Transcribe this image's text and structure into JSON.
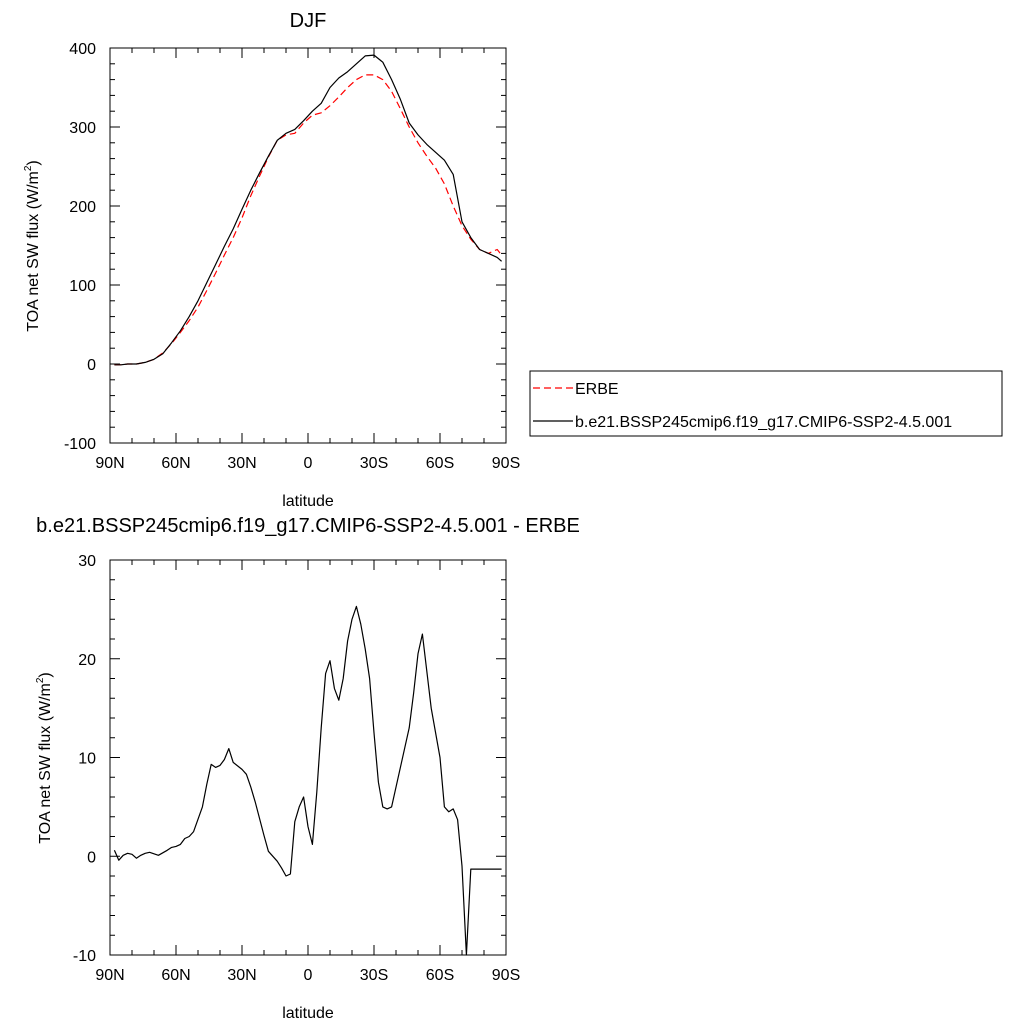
{
  "chart_data": [
    {
      "type": "line",
      "title": "DJF",
      "xlabel": "latitude",
      "ylabel": "TOA net SW flux (W/m",
      "ylabel_sup": "2",
      "ylabel_close": ")",
      "xlim": [
        90,
        -90
      ],
      "ylim": [
        -100,
        400
      ],
      "x_tick_values": [
        90,
        60,
        30,
        0,
        -30,
        -60,
        -90
      ],
      "x_tick_labels": [
        "90N",
        "60N",
        "30N",
        "0",
        "30S",
        "60S",
        "90S"
      ],
      "y_tick_values": [
        -100,
        0,
        100,
        200,
        300,
        400
      ],
      "y_tick_labels": [
        "-100",
        "0",
        "100",
        "200",
        "300",
        "400"
      ],
      "legend_placement": "right",
      "series": [
        {
          "name": "ERBE",
          "color": "#ff0000",
          "dashed": true,
          "x": [
            88,
            85,
            82,
            78,
            74,
            70,
            66,
            62,
            58,
            54,
            50,
            46,
            42,
            38,
            34,
            30,
            26,
            22,
            18,
            14,
            10,
            6,
            2,
            -2,
            -6,
            -10,
            -14,
            -18,
            -22,
            -26,
            -30,
            -34,
            -38,
            -42,
            -46,
            -50,
            -54,
            -58,
            -62,
            -66,
            -70,
            -74,
            -78,
            -82,
            -86,
            -88
          ],
          "y": [
            -1,
            -1,
            0,
            0,
            2,
            6,
            14,
            26,
            40,
            55,
            72,
            93,
            115,
            138,
            160,
            185,
            213,
            238,
            262,
            283,
            290,
            292,
            305,
            315,
            318,
            327,
            338,
            350,
            360,
            366,
            366,
            360,
            345,
            323,
            300,
            280,
            263,
            248,
            228,
            200,
            175,
            158,
            145,
            140,
            145,
            138
          ]
        },
        {
          "name": "b.e21.BSSP245cmip6.f19_g17.CMIP6-SSP2-4.5.001",
          "color": "#000000",
          "dashed": false,
          "x": [
            88,
            85,
            82,
            78,
            74,
            70,
            66,
            62,
            58,
            54,
            50,
            46,
            42,
            38,
            34,
            30,
            26,
            22,
            18,
            14,
            10,
            6,
            2,
            -2,
            -6,
            -10,
            -14,
            -18,
            -22,
            -26,
            -30,
            -34,
            -38,
            -42,
            -46,
            -50,
            -54,
            -58,
            -62,
            -66,
            -70,
            -74,
            -78,
            -82,
            -86,
            -88
          ],
          "y": [
            -1,
            -1,
            0,
            0,
            2,
            6,
            13,
            27,
            42,
            60,
            80,
            103,
            126,
            149,
            171,
            196,
            220,
            242,
            263,
            283,
            292,
            297,
            308,
            320,
            330,
            350,
            362,
            370,
            380,
            390,
            391,
            382,
            360,
            335,
            305,
            290,
            278,
            268,
            258,
            240,
            180,
            160,
            145,
            140,
            135,
            130
          ]
        }
      ]
    },
    {
      "type": "line",
      "title": "b.e21.BSSP245cmip6.f19_g17.CMIP6-SSP2-4.5.001 - ERBE",
      "xlabel": "latitude",
      "ylabel": "TOA net SW flux (W/m",
      "ylabel_sup": "2",
      "ylabel_close": ")",
      "xlim": [
        90,
        -90
      ],
      "ylim": [
        -10,
        30
      ],
      "x_tick_values": [
        90,
        60,
        30,
        0,
        -30,
        -60,
        -90
      ],
      "x_tick_labels": [
        "90N",
        "60N",
        "30N",
        "0",
        "30S",
        "60S",
        "90S"
      ],
      "y_tick_values": [
        -10,
        0,
        10,
        20,
        30
      ],
      "y_tick_labels": [
        "-10",
        "0",
        "10",
        "20",
        "30"
      ],
      "series": [
        {
          "color": "#000000",
          "dashed": false,
          "x": [
            88,
            86,
            84,
            82,
            80,
            78,
            76,
            74,
            72,
            68,
            64,
            62,
            60,
            58,
            56,
            54,
            52,
            48,
            46,
            44,
            42,
            40,
            38,
            36,
            34,
            30,
            28,
            26,
            24,
            20,
            18,
            14,
            12,
            10,
            8,
            6,
            4,
            2,
            0,
            -2,
            -4,
            -6,
            -8,
            -10,
            -12,
            -14,
            -16,
            -18,
            -20,
            -22,
            -24,
            -26,
            -28,
            -30,
            -32,
            -34,
            -36,
            -38,
            -40,
            -42,
            -44,
            -46,
            -48,
            -50,
            -52,
            -56,
            -60,
            -62,
            -64,
            -66,
            -68,
            -70,
            -72,
            -74,
            -76,
            -78,
            -80,
            -82,
            -84,
            -86,
            -88
          ],
          "y": [
            0.6,
            -0.4,
            0.1,
            0.3,
            0.2,
            -0.2,
            0.1,
            0.3,
            0.4,
            0.1,
            0.6,
            0.9,
            1.0,
            1.2,
            1.8,
            2.0,
            2.5,
            5.0,
            7.3,
            9.3,
            9.0,
            9.2,
            9.8,
            10.9,
            9.5,
            8.8,
            8.3,
            7.0,
            5.5,
            2.1,
            0.5,
            -0.5,
            -1.2,
            -2.0,
            -1.8,
            3.5,
            5.0,
            6.0,
            3.0,
            1.2,
            6.5,
            13.0,
            18.5,
            19.8,
            17.0,
            15.8,
            18.0,
            21.8,
            24.0,
            25.3,
            23.5,
            21.0,
            18.0,
            12.5,
            7.5,
            5.0,
            4.8,
            5.0,
            7.0,
            9.0,
            11.0,
            13.0,
            16.5,
            20.5,
            22.5,
            15.0,
            10.0,
            5.0,
            4.5,
            4.8,
            3.7,
            -1.0,
            -10.0,
            -1.3,
            -1.3,
            -1.3,
            -1.3,
            -1.3,
            -1.3,
            -1.3,
            -1.3
          ],
          "note_unused": ""
        }
      ]
    }
  ]
}
